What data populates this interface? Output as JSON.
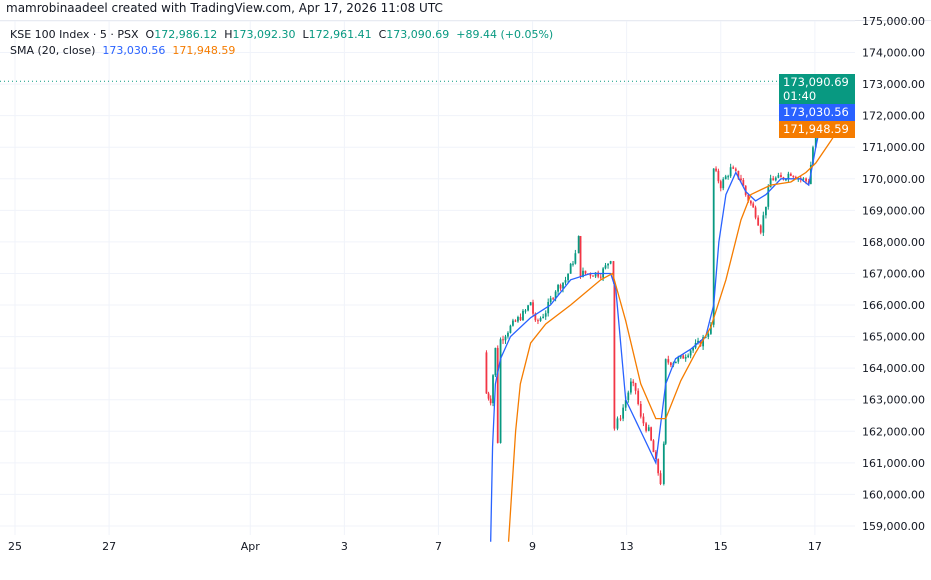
{
  "credit": "mamrobinaadeel created with TradingView.com, Apr 17, 2026 11:08 UTC",
  "legend": {
    "symbol": "KSE 100 Index · 5 · PSX",
    "o_label": "O",
    "o": "172,986.12",
    "h_label": "H",
    "h": "173,092.30",
    "l_label": "L",
    "l": "172,961.41",
    "c_label": "C",
    "c": "173,090.69",
    "change": "+89.44 (+0.05%)",
    "sma_label": "SMA (20, close)",
    "sma1": "173,030.56",
    "sma2": "171,948.59"
  },
  "price_tags": {
    "last": "173,090.69",
    "countdown": "01:40",
    "sma1": "173,030.56",
    "sma2": "171,948.59"
  },
  "colors": {
    "up": "#089981",
    "down": "#f23645",
    "sma1": "#2962ff",
    "sma2": "#f57c00"
  },
  "chart_data": {
    "type": "candlestick",
    "title": "KSE 100 Index · 5 · PSX",
    "ylim": [
      158600,
      175400
    ],
    "yticks": [
      175000,
      174000,
      173000,
      172000,
      171000,
      170000,
      169000,
      168000,
      167000,
      166000,
      165000,
      164000,
      163000,
      162000,
      161000,
      160000,
      159000
    ],
    "ytick_labels": [
      "175,000.00",
      "174,000.00",
      "173,000.00",
      "172,000.00",
      "171,000.00",
      "170,000.00",
      "169,000.00",
      "168,000.00",
      "167,000.00",
      "166,000.00",
      "165,000.00",
      "164,000.00",
      "163,000.00",
      "162,000.00",
      "161,000.00",
      "160,000.00",
      "159,000.00"
    ],
    "x_unit": "trading session index",
    "xlim": [
      -0.3,
      17.9
    ],
    "xticks": [
      {
        "s": 0,
        "label": "25"
      },
      {
        "s": 2,
        "label": "27"
      },
      {
        "s": 5,
        "label": "Apr"
      },
      {
        "s": 7,
        "label": "3"
      },
      {
        "s": 9,
        "label": "7"
      },
      {
        "s": 11,
        "label": "9"
      },
      {
        "s": 13,
        "label": "13"
      },
      {
        "s": 15,
        "label": "15"
      },
      {
        "s": 17,
        "label": "17"
      }
    ],
    "last_price": 173090.69,
    "close_path": [
      [
        9.96,
        164500
      ],
      [
        10.02,
        163200
      ],
      [
        10.11,
        163000
      ],
      [
        10.21,
        164600
      ],
      [
        10.26,
        161700
      ],
      [
        10.32,
        164900
      ],
      [
        10.53,
        165300
      ],
      [
        10.85,
        165800
      ],
      [
        10.96,
        166100
      ],
      [
        11.06,
        165400
      ],
      [
        11.28,
        165800
      ],
      [
        11.49,
        166500
      ],
      [
        11.7,
        166800
      ],
      [
        11.81,
        167200
      ],
      [
        11.91,
        167600
      ],
      [
        11.98,
        168100
      ],
      [
        12.02,
        167000
      ],
      [
        12.23,
        167000
      ],
      [
        12.45,
        167000
      ],
      [
        12.55,
        167200
      ],
      [
        12.66,
        167500
      ],
      [
        12.72,
        166800
      ],
      [
        12.74,
        162100
      ],
      [
        12.87,
        162500
      ],
      [
        12.98,
        163000
      ],
      [
        13.09,
        163500
      ],
      [
        13.19,
        163300
      ],
      [
        13.3,
        162400
      ],
      [
        13.47,
        162000
      ],
      [
        13.62,
        161000
      ],
      [
        13.72,
        160400
      ],
      [
        13.79,
        161500
      ],
      [
        13.83,
        164200
      ],
      [
        13.94,
        164200
      ],
      [
        14.15,
        164300
      ],
      [
        14.36,
        164600
      ],
      [
        14.57,
        164800
      ],
      [
        14.79,
        165300
      ],
      [
        14.85,
        170300
      ],
      [
        15.0,
        169800
      ],
      [
        15.21,
        170300
      ],
      [
        15.43,
        170000
      ],
      [
        15.53,
        169500
      ],
      [
        15.64,
        169200
      ],
      [
        15.74,
        168900
      ],
      [
        15.85,
        168400
      ],
      [
        15.96,
        169200
      ],
      [
        16.06,
        170000
      ],
      [
        16.28,
        170000
      ],
      [
        16.49,
        170200
      ],
      [
        16.7,
        170000
      ],
      [
        16.87,
        169900
      ],
      [
        16.96,
        171000
      ],
      [
        17.02,
        172000
      ],
      [
        17.13,
        172800
      ],
      [
        17.23,
        173200
      ],
      [
        17.34,
        172900
      ],
      [
        17.45,
        173100
      ],
      [
        17.55,
        173000
      ],
      [
        17.66,
        173090.69
      ]
    ],
    "series": [
      {
        "name": "SMA 173,030.56",
        "color": "#2962ff",
        "points": [
          [
            10.11,
            158500
          ],
          [
            10.15,
            161500
          ],
          [
            10.21,
            163500
          ],
          [
            10.32,
            164300
          ],
          [
            10.53,
            165000
          ],
          [
            10.96,
            165600
          ],
          [
            11.38,
            166000
          ],
          [
            11.81,
            166800
          ],
          [
            12.23,
            167000
          ],
          [
            12.66,
            167000
          ],
          [
            12.77,
            166500
          ],
          [
            12.98,
            163000
          ],
          [
            13.3,
            162000
          ],
          [
            13.62,
            161000
          ],
          [
            13.83,
            163500
          ],
          [
            14.04,
            164300
          ],
          [
            14.36,
            164600
          ],
          [
            14.68,
            165000
          ],
          [
            14.85,
            166000
          ],
          [
            14.96,
            168000
          ],
          [
            15.11,
            169500
          ],
          [
            15.32,
            170200
          ],
          [
            15.53,
            169600
          ],
          [
            15.74,
            169300
          ],
          [
            15.96,
            169500
          ],
          [
            16.28,
            170000
          ],
          [
            16.7,
            170000
          ],
          [
            16.87,
            169800
          ],
          [
            17.02,
            171000
          ],
          [
            17.23,
            172500
          ],
          [
            17.45,
            172900
          ],
          [
            17.66,
            173030.56
          ]
        ]
      },
      {
        "name": "SMA 171,948.59",
        "color": "#f57c00",
        "points": [
          [
            10.49,
            158500
          ],
          [
            10.64,
            162000
          ],
          [
            10.74,
            163500
          ],
          [
            10.96,
            164800
          ],
          [
            11.28,
            165400
          ],
          [
            11.81,
            166000
          ],
          [
            12.45,
            166800
          ],
          [
            12.7,
            167000
          ],
          [
            12.98,
            165500
          ],
          [
            13.3,
            163500
          ],
          [
            13.62,
            162400
          ],
          [
            13.83,
            162400
          ],
          [
            14.15,
            163600
          ],
          [
            14.47,
            164500
          ],
          [
            14.79,
            165300
          ],
          [
            15.11,
            166800
          ],
          [
            15.43,
            168700
          ],
          [
            15.64,
            169500
          ],
          [
            16.06,
            169800
          ],
          [
            16.49,
            169900
          ],
          [
            16.81,
            170200
          ],
          [
            17.02,
            170500
          ],
          [
            17.34,
            171200
          ],
          [
            17.66,
            171948.59
          ]
        ]
      }
    ]
  }
}
